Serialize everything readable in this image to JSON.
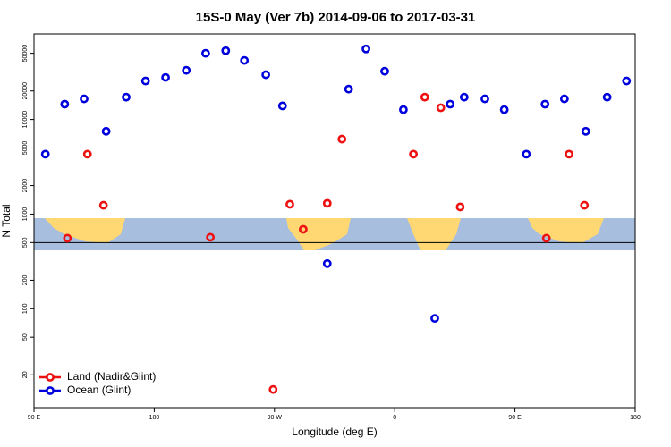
{
  "chart_data": {
    "type": "scatter",
    "title": "15S-0 May (Ver 7b)   2014-09-06 to 2017-03-31",
    "x_label": "Longitude (deg E)",
    "y_label": "N Total",
    "log_y": true,
    "xlim": [
      90,
      540
    ],
    "ylim": [
      9,
      80000
    ],
    "xticks": [
      {
        "value": 90,
        "label": "90 E"
      },
      180,
      {
        "value": 270,
        "label": "90 W"
      },
      {
        "value": 360,
        "label": "0"
      },
      {
        "value": 450,
        "label": "90 E"
      },
      {
        "value": 540,
        "label": "180"
      }
    ],
    "yticks": [
      20,
      50,
      100,
      200,
      500,
      1000,
      2000,
      5000,
      10000,
      20000,
      50000
    ],
    "reference_line": 500,
    "legend": "bottom-left",
    "series": [
      {
        "name": "Land (Nadir&Glint)",
        "color": "#ee1111",
        "x": [
          115,
          130,
          142,
          222,
          269,
          281.5,
          291.5,
          309.5,
          320.5,
          374,
          382.5,
          394.5,
          409,
          473.5,
          490.5,
          502
        ],
        "values": [
          556,
          4300,
          1240,
          569,
          14,
          1270,
          690,
          1300,
          6200,
          4300,
          17200,
          13300,
          1190,
          556,
          4300,
          1240
        ]
      },
      {
        "name": "Ocean (Glint)",
        "color": "#0000dd",
        "x": [
          98.5,
          113,
          127.5,
          144,
          159,
          173.5,
          188.5,
          204,
          218.5,
          233.5,
          247.5,
          263.5,
          276,
          309.5,
          325.5,
          338.5,
          352.5,
          366.5,
          390,
          401.5,
          412,
          427.5,
          442,
          458.5,
          472.5,
          487,
          503,
          519,
          533.5
        ],
        "values": [
          4300,
          14500,
          16500,
          7500,
          17200,
          25500,
          27800,
          33000,
          50000,
          53200,
          42000,
          29700,
          13900,
          300,
          20900,
          55600,
          32300,
          12700,
          79,
          14500,
          17200,
          16500,
          12700,
          4300,
          14500,
          16500,
          7500,
          17200,
          25500
        ]
      }
    ]
  }
}
